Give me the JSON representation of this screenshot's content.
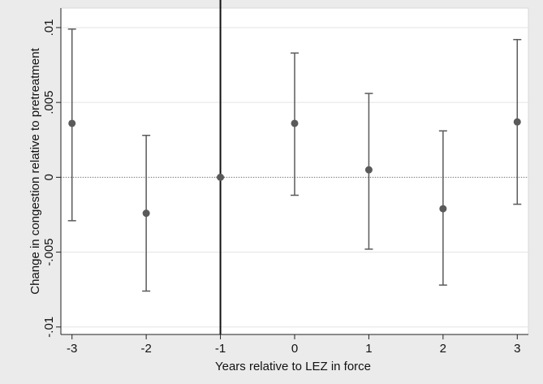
{
  "chart_data": {
    "type": "errorbar",
    "x_label": "Years relative to LEZ in force",
    "y_label": "Change in congestion relative to pretreatment",
    "x": [
      -3,
      -2,
      -1,
      0,
      1,
      2,
      3
    ],
    "values": [
      0.0036,
      -0.0024,
      0,
      0.0036,
      0.0005,
      -0.0021,
      0.0037
    ],
    "lower": [
      -0.0029,
      -0.0076,
      0,
      -0.0012,
      -0.0048,
      -0.0072,
      -0.0018
    ],
    "upper": [
      0.0099,
      0.0028,
      0,
      0.0083,
      0.0056,
      0.0031,
      0.0092
    ],
    "color": "#5a5a5a",
    "xlim": [
      -3.15,
      3.15
    ],
    "ylim": [
      -0.0105,
      0.0113
    ],
    "xticks": [
      -3,
      -2,
      -1,
      0,
      1,
      2,
      3
    ],
    "yticks": [
      {
        "value": -0.01,
        "label": "-.01"
      },
      {
        "value": -0.005,
        "label": "-.005"
      },
      0,
      {
        "value": 0.005,
        "label": ".005"
      },
      {
        "value": 0.01,
        "label": ".01"
      }
    ],
    "xline": -1,
    "yline": 0,
    "grid": true
  }
}
